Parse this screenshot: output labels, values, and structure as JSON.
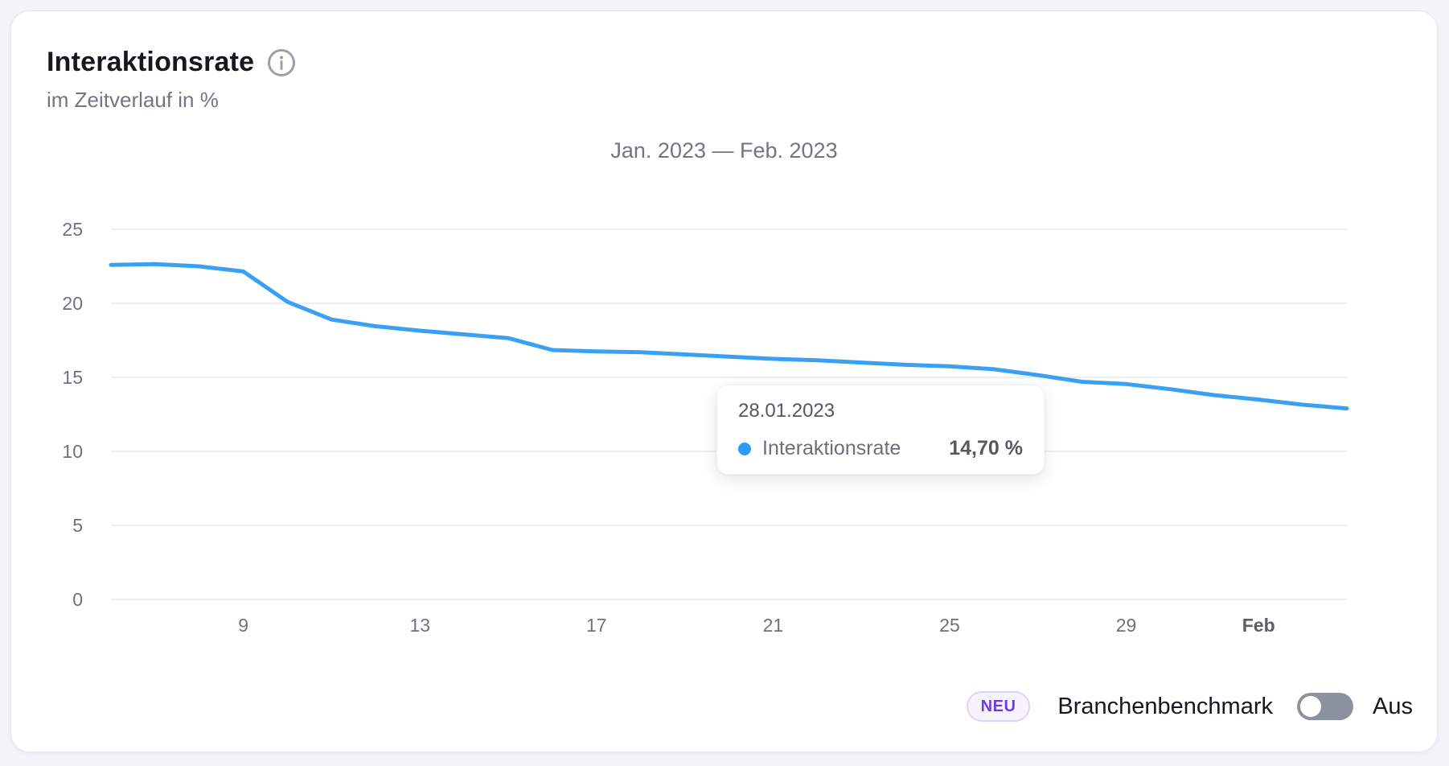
{
  "header": {
    "title": "Interaktionsrate",
    "subtitle": "im Zeitverlauf in %"
  },
  "chart_data": {
    "type": "line",
    "title": "Jan. 2023 — Feb. 2023",
    "ylim": [
      0,
      25
    ],
    "y_ticks": [
      0,
      5,
      10,
      15,
      20,
      25
    ],
    "x_ticks": [
      {
        "label": "9",
        "index": 3,
        "bold": false
      },
      {
        "label": "13",
        "index": 7,
        "bold": false
      },
      {
        "label": "17",
        "index": 11,
        "bold": false
      },
      {
        "label": "21",
        "index": 15,
        "bold": false
      },
      {
        "label": "25",
        "index": 19,
        "bold": false
      },
      {
        "label": "29",
        "index": 23,
        "bold": false
      },
      {
        "label": "Feb",
        "index": 26,
        "bold": true
      }
    ],
    "grid": true,
    "line_color": "#3aa0f3",
    "series_name": "Interaktionsrate",
    "unit": "%",
    "dates": [
      "06.01.2023",
      "07.01.2023",
      "08.01.2023",
      "09.01.2023",
      "10.01.2023",
      "11.01.2023",
      "12.01.2023",
      "13.01.2023",
      "14.01.2023",
      "15.01.2023",
      "16.01.2023",
      "17.01.2023",
      "18.01.2023",
      "19.01.2023",
      "20.01.2023",
      "21.01.2023",
      "22.01.2023",
      "23.01.2023",
      "24.01.2023",
      "25.01.2023",
      "26.01.2023",
      "27.01.2023",
      "28.01.2023",
      "29.01.2023",
      "30.01.2023",
      "31.01.2023",
      "01.02.2023",
      "02.02.2023",
      "03.02.2023"
    ],
    "values": [
      22.6,
      22.65,
      22.5,
      22.15,
      20.1,
      18.9,
      18.45,
      18.15,
      17.9,
      17.65,
      16.85,
      16.75,
      16.7,
      16.55,
      16.4,
      16.25,
      16.15,
      16.0,
      15.85,
      15.75,
      15.55,
      15.15,
      14.7,
      14.55,
      14.2,
      13.8,
      13.5,
      13.15,
      12.9
    ]
  },
  "tooltip": {
    "date": "28.01.2023",
    "series_label": "Interaktionsrate",
    "value": "14,70 %"
  },
  "footer": {
    "badge": "NEU",
    "label": "Branchenbenchmark",
    "state": "Aus"
  },
  "colors": {
    "line": "#3aa0f3",
    "grid": "#e8eaed",
    "axis_text": "#6d727c",
    "badge_text": "#6c3ce4",
    "toggle_off": "#8b929d"
  }
}
